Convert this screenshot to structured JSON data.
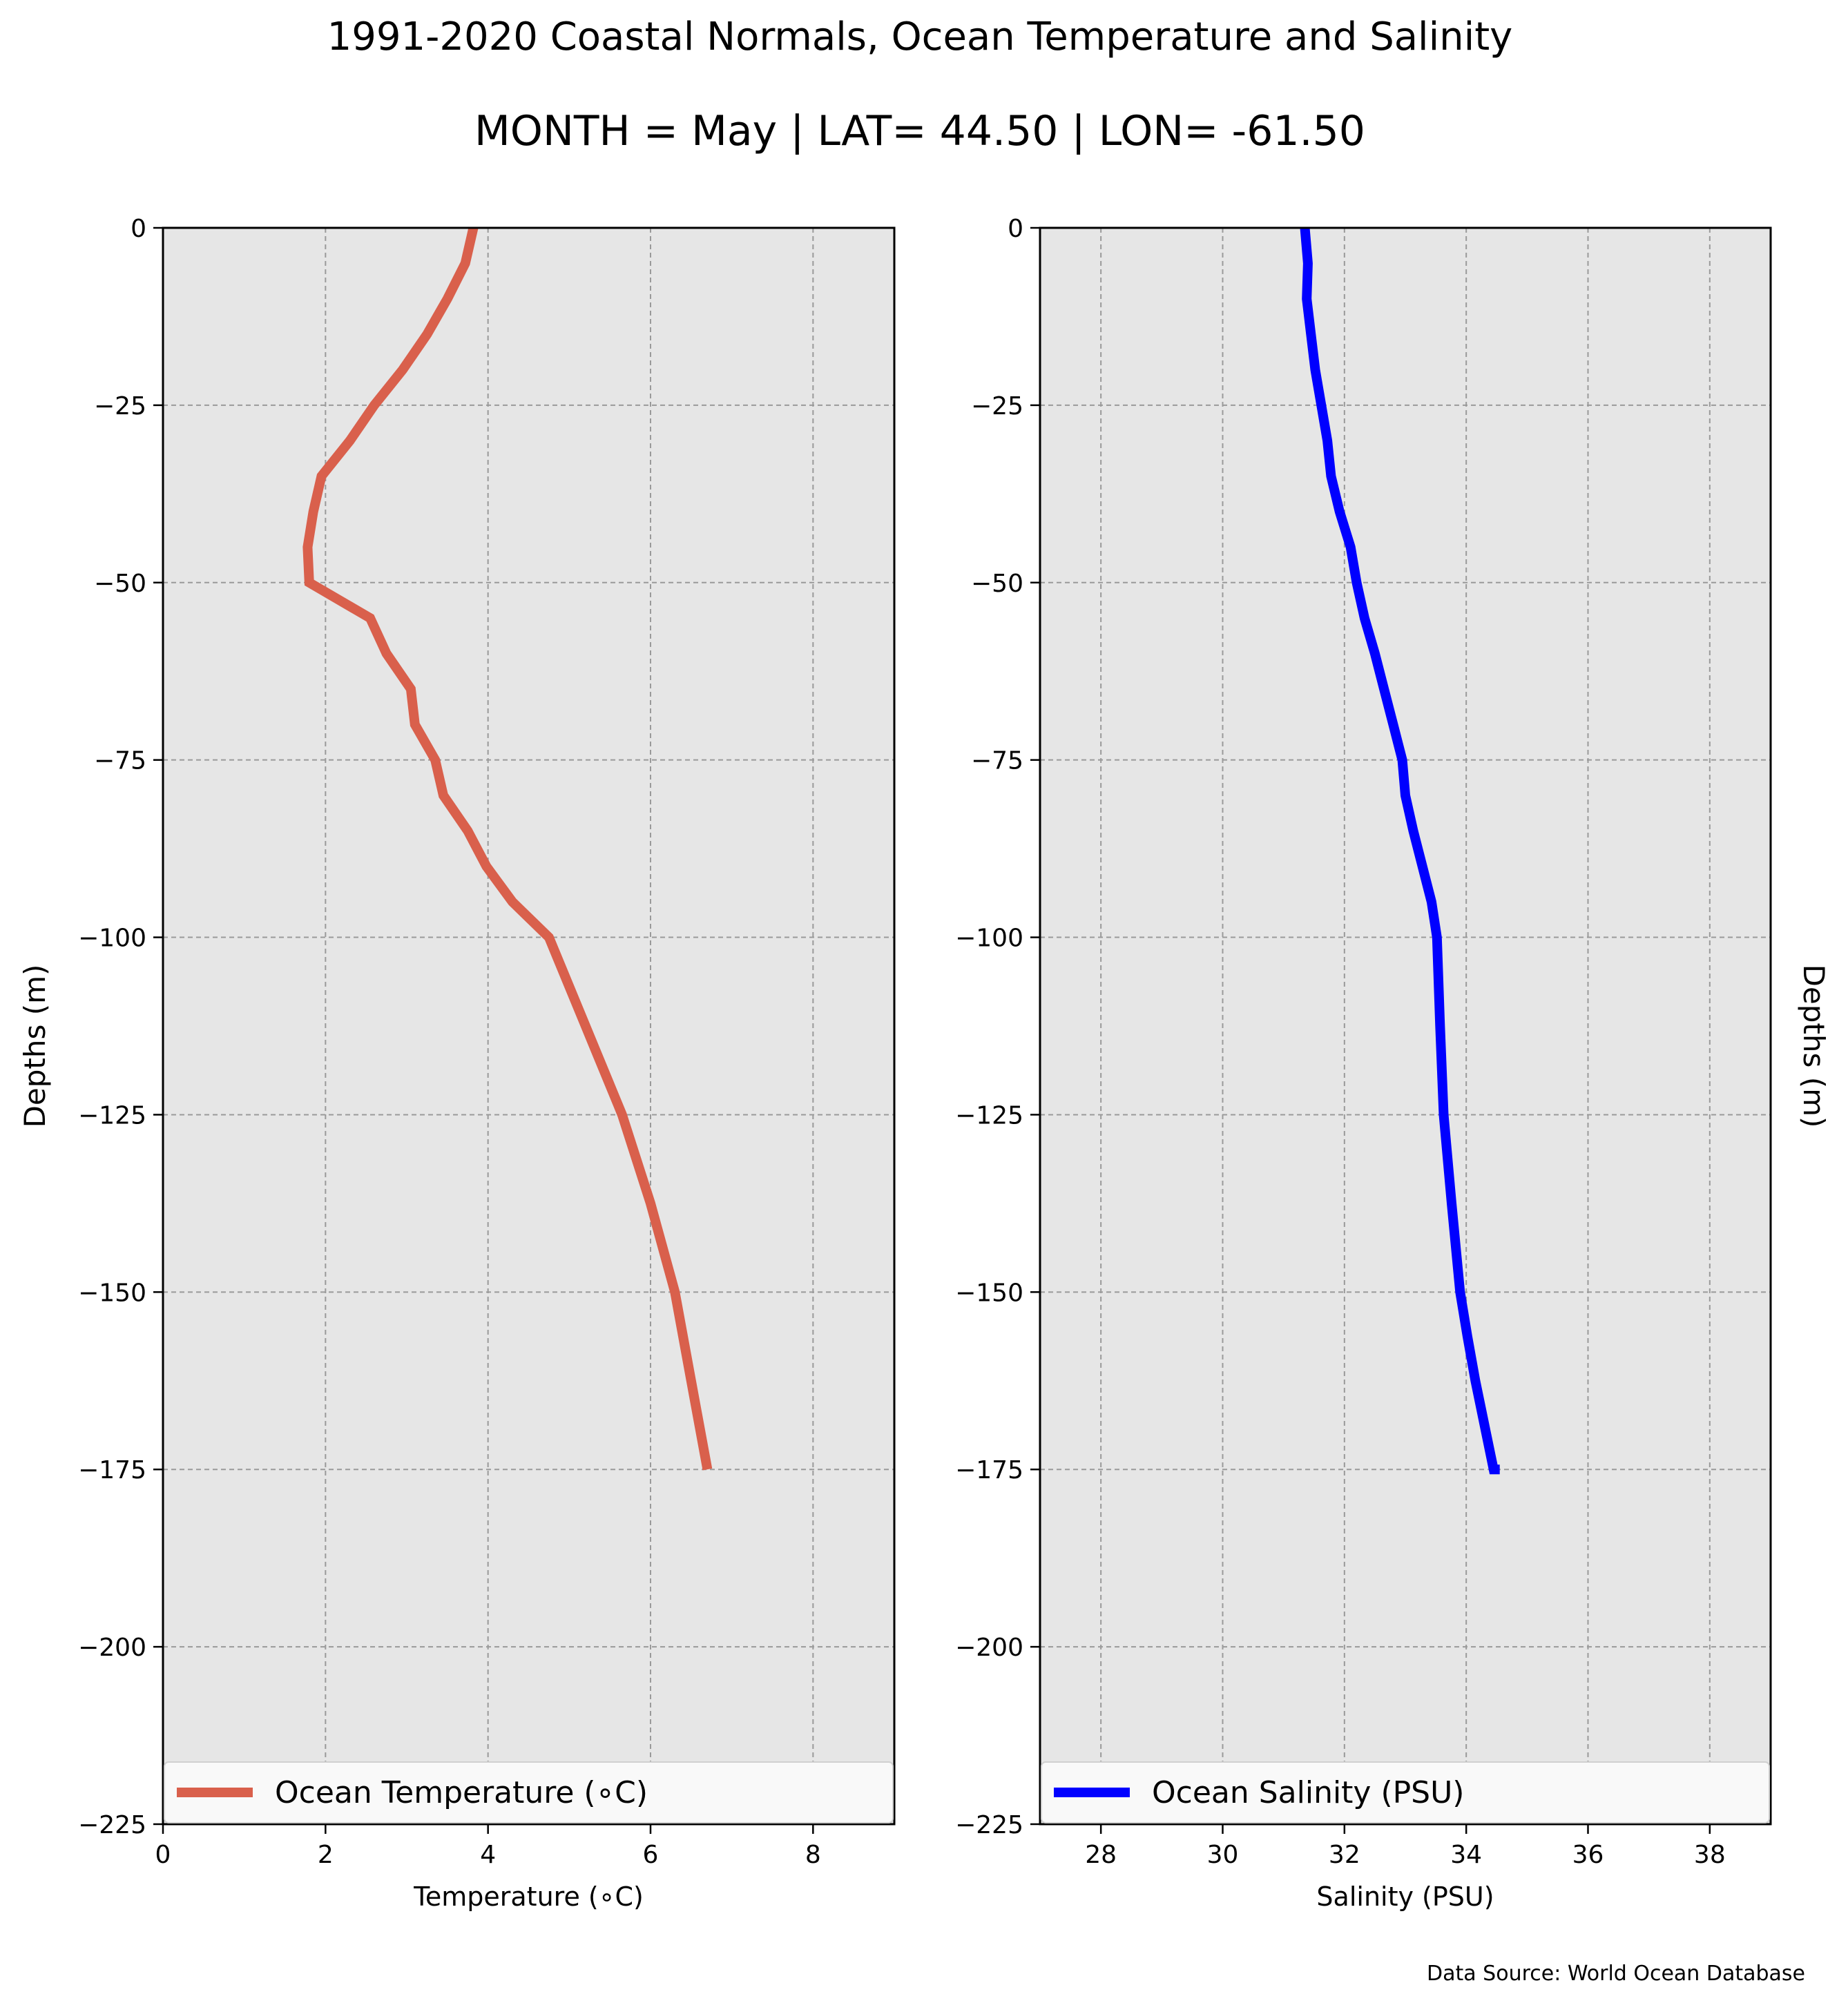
{
  "title": "1991-2020 Coastal Normals, Ocean Temperature and Salinity",
  "subtitle": "MONTH = May | LAT= 44.50 | LON= -61.50",
  "source_note": "Data Source: World Ocean Database",
  "colors": {
    "temperature_line": "#d9604c",
    "salinity_line": "#0000ff",
    "plot_bg": "#e6e6e6",
    "grid": "#9a9a9a"
  },
  "chart_data": [
    {
      "type": "line",
      "xlabel": "Temperature ($^\\circ$C)",
      "xlabel_display": "Temperature (∘C)",
      "ylabel": "Depths (m)",
      "xlim": [
        0,
        9
      ],
      "ylim": [
        -225,
        0
      ],
      "xticks": [
        0,
        2,
        4,
        6,
        8
      ],
      "yticks": [
        0,
        -25,
        -50,
        -75,
        -100,
        -125,
        -150,
        -175,
        -200,
        -225
      ],
      "grid": true,
      "legend_placement": "lower",
      "series": [
        {
          "name": "Ocean Temperature (∘C)",
          "color": "#d9604c",
          "x": [
            3.82,
            3.72,
            3.5,
            3.25,
            2.95,
            2.6,
            2.3,
            1.95,
            1.85,
            1.78,
            1.8,
            2.55,
            2.75,
            3.05,
            3.1,
            3.35,
            3.45,
            3.75,
            3.98,
            4.3,
            4.75,
            5.2,
            5.65,
            6.0,
            6.3,
            6.5,
            6.7
          ],
          "y": [
            0,
            -5,
            -10,
            -15,
            -20,
            -25,
            -30,
            -35,
            -40,
            -45,
            -50,
            -55,
            -60,
            -65,
            -70,
            -75,
            -80,
            -85,
            -90,
            -95,
            -100,
            -112.5,
            -125,
            -137.5,
            -150,
            -162.5,
            -175
          ]
        }
      ]
    },
    {
      "type": "line",
      "xlabel": "Salinity (PSU)",
      "ylabel": "Depths (m)",
      "xlim": [
        27,
        39
      ],
      "ylim": [
        -225,
        0
      ],
      "xticks": [
        28,
        30,
        32,
        34,
        36,
        38
      ],
      "yticks": [
        0,
        -25,
        -50,
        -75,
        -100,
        -125,
        -150,
        -175,
        -200,
        -225
      ],
      "grid": true,
      "legend_placement": "lower",
      "series": [
        {
          "name": "Ocean Salinity (PSU)",
          "color": "#0000ff",
          "x": [
            31.35,
            31.4,
            31.38,
            31.45,
            31.52,
            31.62,
            31.72,
            31.78,
            31.92,
            32.1,
            32.2,
            32.33,
            32.5,
            32.65,
            32.8,
            32.95,
            33.0,
            33.13,
            33.28,
            33.43,
            33.52,
            33.57,
            33.63,
            33.76,
            33.9,
            34.02,
            34.15,
            34.3,
            34.45,
            34.55
          ],
          "y": [
            0,
            -5,
            -10,
            -15,
            -20,
            -25,
            -30,
            -35,
            -40,
            -45,
            -50,
            -55,
            -60,
            -65,
            -70,
            -75,
            -80,
            -85,
            -90,
            -95,
            -100,
            -112.5,
            -125,
            -137.5,
            -150,
            -156.25,
            -162.5,
            -168.75,
            -175,
            -175
          ]
        }
      ]
    }
  ]
}
